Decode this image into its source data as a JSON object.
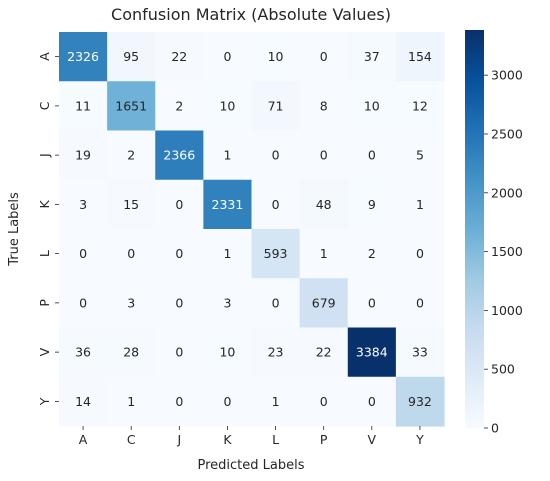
{
  "chart_data": {
    "type": "heatmap",
    "title": "Confusion Matrix (Absolute Values)",
    "xlabel": "Predicted Labels",
    "ylabel": "True Labels",
    "x_categories": [
      "A",
      "C",
      "J",
      "K",
      "L",
      "P",
      "V",
      "Y"
    ],
    "y_categories": [
      "A",
      "C",
      "J",
      "K",
      "L",
      "P",
      "V",
      "Y"
    ],
    "values": [
      [
        2326,
        95,
        22,
        0,
        10,
        0,
        37,
        154
      ],
      [
        11,
        1651,
        2,
        10,
        71,
        8,
        10,
        12
      ],
      [
        19,
        2,
        2366,
        1,
        0,
        0,
        0,
        5
      ],
      [
        3,
        15,
        0,
        2331,
        0,
        48,
        9,
        1
      ],
      [
        0,
        0,
        0,
        1,
        593,
        1,
        2,
        0
      ],
      [
        0,
        3,
        0,
        3,
        0,
        679,
        0,
        0
      ],
      [
        36,
        28,
        0,
        10,
        23,
        22,
        3384,
        33
      ],
      [
        14,
        1,
        0,
        0,
        1,
        0,
        0,
        932
      ]
    ],
    "colormap": "Blues",
    "colorbar": {
      "range": [
        0,
        3384
      ],
      "ticks": [
        0,
        500,
        1000,
        1500,
        2000,
        2500,
        3000
      ]
    },
    "colors": {
      "low": "#f7fbff",
      "high": "#08306b",
      "text_dark": "#262626",
      "text_light": "#ffffff"
    },
    "grid": false,
    "legend": "colorbar-right"
  }
}
